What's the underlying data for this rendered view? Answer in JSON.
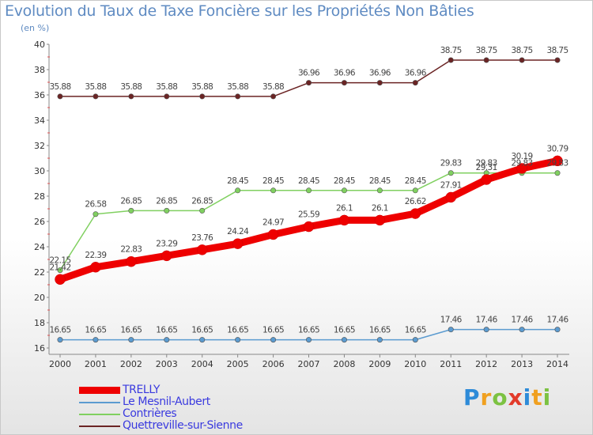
{
  "title": "Evolution du Taux de Taxe Foncière sur les Propriétés Non Bâties",
  "unit_label": "(en %)",
  "logo": {
    "letters": [
      "P",
      "r",
      "o",
      "x",
      "i",
      "t",
      "i"
    ],
    "colors": [
      "#2e8bd8",
      "#f0a020",
      "#7cc242",
      "#e23a2a",
      "#2e8bd8",
      "#f0a020",
      "#7cc242"
    ]
  },
  "chart_data": {
    "type": "line",
    "title": "Evolution du Taux de Taxe Foncière sur les Propriétés Non Bâties",
    "ylabel": "(en %)",
    "xlabel": "",
    "x": [
      "2000",
      "2001",
      "2002",
      "2003",
      "2004",
      "2005",
      "2006",
      "2007",
      "2008",
      "2009",
      "2010",
      "2011",
      "2012",
      "2013",
      "2014"
    ],
    "ylim": [
      16,
      40
    ],
    "yticks": [
      16,
      18,
      20,
      22,
      24,
      26,
      28,
      30,
      32,
      34,
      36,
      38,
      40
    ],
    "grid": false,
    "legend_position": "bottom-left",
    "series": [
      {
        "name": "Quettreville-sur-Sienne",
        "color": "#6b2424",
        "values": [
          35.88,
          35.88,
          35.88,
          35.88,
          35.88,
          35.88,
          35.88,
          36.96,
          36.96,
          36.96,
          36.96,
          38.75,
          38.75,
          38.75,
          38.75
        ],
        "labels": [
          "35.88",
          "35.88",
          "35.88",
          "35.88",
          "35.88",
          "35.88",
          "35.88",
          "36.96",
          "36.96",
          "36.96",
          "36.96",
          "38.75",
          "38.75",
          "38.75",
          "38.75"
        ]
      },
      {
        "name": "Contrières",
        "color": "#80d060",
        "values": [
          22.15,
          26.58,
          26.85,
          26.85,
          26.85,
          28.45,
          28.45,
          28.45,
          28.45,
          28.45,
          28.45,
          29.83,
          29.83,
          29.83,
          29.83
        ],
        "labels": [
          "22.15",
          "26.58",
          "26.85",
          "26.85",
          "26.85",
          "28.45",
          "28.45",
          "28.45",
          "28.45",
          "28.45",
          "28.45",
          "29.83",
          "29.83",
          "29.83",
          "29.83"
        ]
      },
      {
        "name": "Le Mesnil-Aubert",
        "color": "#5b9bd0",
        "values": [
          16.65,
          16.65,
          16.65,
          16.65,
          16.65,
          16.65,
          16.65,
          16.65,
          16.65,
          16.65,
          16.65,
          17.46,
          17.46,
          17.46,
          17.46
        ],
        "labels": [
          "16.65",
          "16.65",
          "16.65",
          "16.65",
          "16.65",
          "16.65",
          "16.65",
          "16.65",
          "16.65",
          "16.65",
          "16.65",
          "17.46",
          "17.46",
          "17.46",
          "17.46"
        ]
      },
      {
        "name": "TRELLY",
        "color": "#ee0000",
        "values": [
          21.42,
          22.39,
          22.83,
          23.29,
          23.76,
          24.24,
          24.97,
          25.59,
          26.1,
          26.1,
          26.62,
          27.91,
          29.31,
          30.19,
          30.79
        ],
        "labels": [
          "21.42",
          "22.39",
          "22.83",
          "23.29",
          "23.76",
          "24.24",
          "24.97",
          "25.59",
          "26.1",
          "26.1",
          "26.62",
          "27.91",
          "29.31",
          "30.19",
          "30.79"
        ]
      }
    ],
    "legend": [
      "TRELLY",
      "Le Mesnil-Aubert",
      "Contrières",
      "Quettreville-sur-Sienne"
    ]
  }
}
